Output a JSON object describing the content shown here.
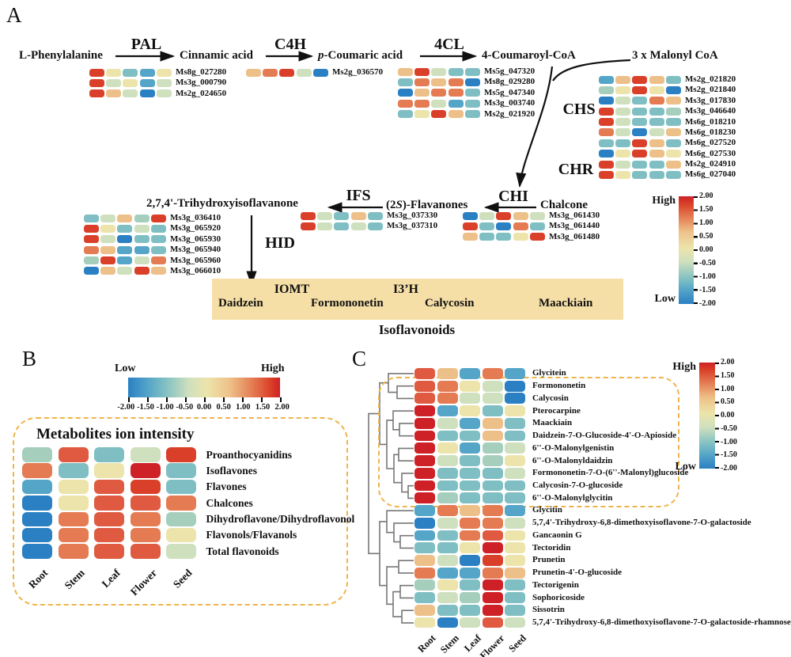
{
  "palette": {
    "D": "#ce2127",
    "R": "#da4029",
    "S": "#df5a40",
    "O": "#e47b52",
    "T": "#edc089",
    "C": "#ece4ab",
    "G": "#cfe0be",
    "M": "#a5cfbc",
    "E": "#7fbfc3",
    "L": "#54a5c8",
    "B": "#2a80c3",
    "accent_dashed": "#efb44b",
    "isoflavonoid_box_bg": "#f6dfa7",
    "dendrogram_line": "#777777",
    "arrow": "#111111"
  },
  "panelA": {
    "label": "A",
    "metabolites": {
      "phe": "L-Phenylalanine",
      "cinnamic": "Cinnamic acid",
      "coumaric_prefix": "p",
      "coumaric_rest": "-Coumaric acid",
      "coumaroyl": "4-Coumaroyl-CoA",
      "malonyl": "3 x Malonyl CoA",
      "chalcone": "Chalcone",
      "flavanones_pre": "(2",
      "flavanones_it": "S",
      "flavanones_rest": ")-Flavanones",
      "trihydroxy": "2,7,4'-Trihydroxyisoflavanone"
    },
    "enzymes": {
      "pal": "PAL",
      "c4h": "C4H",
      "fcl": "4CL",
      "chs": "CHS",
      "chr": "CHR",
      "chi": "CHI",
      "ifs": "IFS",
      "hid": "HID",
      "iomt": "IOMT",
      "i3h": "I3’H"
    },
    "isobox": {
      "daidzein": "Daidzein",
      "formononetin": "Formononetin",
      "calycosin": "Calycosin",
      "maackiain": "Maackiain",
      "caption": "Isoflavonoids"
    },
    "colorbar": {
      "high": "High",
      "low": "Low",
      "ticks": [
        "2.00",
        "1.50",
        "1.00",
        "0.50",
        "0.00",
        "-0.50",
        "-1.00",
        "-1.50",
        "-2.00"
      ]
    }
  },
  "panelB": {
    "label": "B",
    "colorbar": {
      "low": "Low",
      "high": "High",
      "ticks": [
        "-2.00",
        "-1.50",
        "-1.00",
        "-0.50",
        "0.00",
        "0.50",
        "1.00",
        "1.50",
        "2.00"
      ]
    },
    "title": "Metabolites ion intensity"
  },
  "panelC": {
    "label": "C",
    "colorbar": {
      "high": "High",
      "low": "Low",
      "ticks": [
        "2.00",
        "1.50",
        "1.00",
        "0.50",
        "0.00",
        "-0.50",
        "-1.00",
        "-1.50",
        "-2.00"
      ]
    },
    "dendrogram_merges": [
      [
        "L2",
        "L3",
        502
      ],
      [
        "L1",
        "M0",
        491
      ],
      [
        "L5",
        "L6",
        505
      ],
      [
        "L4",
        "M2",
        497
      ],
      [
        "L7",
        "L8",
        504
      ],
      [
        "L10",
        "L11",
        516
      ],
      [
        "L9",
        "M5",
        508
      ],
      [
        "M4",
        "M6",
        498
      ],
      [
        "M3",
        "M7",
        489
      ],
      [
        "M1",
        "M8",
        480
      ],
      [
        "L14",
        "L15",
        506
      ],
      [
        "L13",
        "M10",
        498
      ],
      [
        "L12",
        "M11",
        489
      ],
      [
        "L16",
        "L17",
        504
      ],
      [
        "L18",
        "L19",
        506
      ],
      [
        "L20",
        "L21",
        508
      ],
      [
        "M14",
        "M15",
        497
      ],
      [
        "M13",
        "M16",
        489
      ],
      [
        "M12",
        "M17",
        480
      ],
      [
        "M9",
        "M18",
        466
      ]
    ]
  },
  "chart_data": [
    {
      "type": "heatmap",
      "panel": "A",
      "description": "Gene expression (color scale -2 to 2) beside each pathway enzyme",
      "columns": [
        "Root",
        "Stem",
        "Leaf",
        "Flower",
        "Seed"
      ],
      "scale": [
        -2,
        2
      ],
      "groups": {
        "PAL": [
          {
            "gene": "Ms8g_027280",
            "cells": [
              "R",
              "C",
              "E",
              "L",
              "C"
            ]
          },
          {
            "gene": "Ms3g_000790",
            "cells": [
              "R",
              "G",
              "C",
              "L",
              "G"
            ]
          },
          {
            "gene": "Ms2g_024650",
            "cells": [
              "R",
              "T",
              "G",
              "B",
              "G"
            ]
          }
        ],
        "C4H": [
          {
            "gene": "Ms2g_036570",
            "cells": [
              "T",
              "O",
              "R",
              "G",
              "B"
            ]
          }
        ],
        "4CL": [
          {
            "gene": "Ms5g_047320",
            "cells": [
              "T",
              "R",
              "G",
              "E",
              "E"
            ]
          },
          {
            "gene": "Ms8g_029280",
            "cells": [
              "E",
              "O",
              "T",
              "O",
              "B"
            ]
          },
          {
            "gene": "Ms5g_047340",
            "cells": [
              "B",
              "T",
              "O",
              "O",
              "E"
            ]
          },
          {
            "gene": "Ms3g_003740",
            "cells": [
              "O",
              "O",
              "G",
              "L",
              "E"
            ]
          },
          {
            "gene": "Ms2g_021920",
            "cells": [
              "E",
              "C",
              "R",
              "T",
              "E"
            ]
          }
        ],
        "CHS": [
          {
            "gene": "Ms2g_021820",
            "cells": [
              "L",
              "T",
              "R",
              "T",
              "E"
            ]
          },
          {
            "gene": "Ms2g_021840",
            "cells": [
              "M",
              "C",
              "R",
              "C",
              "B"
            ]
          },
          {
            "gene": "Ms3g_017830",
            "cells": [
              "B",
              "G",
              "E",
              "O",
              "T"
            ]
          },
          {
            "gene": "Ms3g_046640",
            "cells": [
              "R",
              "G",
              "E",
              "E",
              "M"
            ]
          },
          {
            "gene": "Ms6g_018210",
            "cells": [
              "R",
              "G",
              "E",
              "E",
              "E"
            ]
          },
          {
            "gene": "Ms6g_018230",
            "cells": [
              "O",
              "G",
              "B",
              "G",
              "T"
            ]
          },
          {
            "gene": "Ms6g_027520",
            "cells": [
              "E",
              "E",
              "R",
              "T",
              "E"
            ]
          },
          {
            "gene": "Ms6g_027530",
            "cells": [
              "B",
              "C",
              "R",
              "T",
              "C"
            ]
          }
        ],
        "CHR": [
          {
            "gene": "Ms2g_024910",
            "cells": [
              "R",
              "G",
              "E",
              "E",
              "T"
            ]
          },
          {
            "gene": "Ms6g_027040",
            "cells": [
              "R",
              "C",
              "E",
              "E",
              "E"
            ]
          }
        ],
        "CHI": [
          {
            "gene": "Ms3g_061430",
            "cells": [
              "B",
              "G",
              "R",
              "T",
              "G"
            ]
          },
          {
            "gene": "Ms3g_061440",
            "cells": [
              "R",
              "E",
              "B",
              "O",
              "E"
            ]
          },
          {
            "gene": "Ms3g_061480",
            "cells": [
              "T",
              "E",
              "E",
              "C",
              "R"
            ]
          }
        ],
        "IFS": [
          {
            "gene": "Ms3g_037330",
            "cells": [
              "R",
              "G",
              "E",
              "T",
              "E"
            ]
          },
          {
            "gene": "Ms3g_037310",
            "cells": [
              "R",
              "G",
              "E",
              "G",
              "E"
            ]
          }
        ],
        "HID": [
          {
            "gene": "Ms3g_036410",
            "cells": [
              "E",
              "G",
              "T",
              "M",
              "R"
            ]
          },
          {
            "gene": "Ms3g_065920",
            "cells": [
              "R",
              "C",
              "E",
              "G",
              "E"
            ]
          },
          {
            "gene": "Ms3g_065930",
            "cells": [
              "R",
              "G",
              "B",
              "E",
              "E"
            ]
          },
          {
            "gene": "Ms3g_065940",
            "cells": [
              "O",
              "T",
              "L",
              "L",
              "E"
            ]
          },
          {
            "gene": "Ms3g_065960",
            "cells": [
              "M",
              "R",
              "L",
              "G",
              "O"
            ]
          },
          {
            "gene": "Ms3g_066010",
            "cells": [
              "B",
              "T",
              "G",
              "R",
              "T"
            ]
          }
        ]
      }
    },
    {
      "type": "heatmap",
      "panel": "B",
      "title": "Metabolites ion intensity",
      "columns": [
        "Root",
        "Stem",
        "Leaf",
        "Flower",
        "Seed"
      ],
      "scale": [
        -2,
        2
      ],
      "rows": [
        {
          "label": "Proanthocyanidins",
          "cells": [
            "M",
            "S",
            "E",
            "G",
            "R"
          ]
        },
        {
          "label": "Isoflavones",
          "cells": [
            "O",
            "E",
            "C",
            "D",
            "E"
          ]
        },
        {
          "label": "Flavones",
          "cells": [
            "L",
            "C",
            "S",
            "R",
            "E"
          ]
        },
        {
          "label": "Chalcones",
          "cells": [
            "B",
            "C",
            "S",
            "S",
            "O"
          ]
        },
        {
          "label": "Dihydroflavone/Dihydroflavonol",
          "cells": [
            "B",
            "O",
            "S",
            "O",
            "M"
          ]
        },
        {
          "label": "Flavonols/Flavanols",
          "cells": [
            "B",
            "O",
            "S",
            "O",
            "C"
          ]
        },
        {
          "label": "Total flavonoids",
          "cells": [
            "B",
            "O",
            "S",
            "S",
            "G"
          ]
        }
      ]
    },
    {
      "type": "heatmap",
      "panel": "C",
      "columns": [
        "Root",
        "Stem",
        "Leaf",
        "Flower",
        "Seed"
      ],
      "scale": [
        -2,
        2
      ],
      "highlighted_rows": [
        "Formononetin",
        "Calycosin",
        "Pterocarpine",
        "Maackiain",
        "Daidzein-7-O-Glucoside-4'-O-Apioside",
        "6''-O-Malonylgenistin",
        "6''-O-Malonyldaidzin",
        "Formononetin-7-O-(6''-Malonyl)glucoside",
        "Calycosin-7-O-glucoside",
        "6''-O-Malonylglycitin"
      ],
      "rows": [
        {
          "label": "Glycitein",
          "cells": [
            "S",
            "T",
            "L",
            "O",
            "L"
          ]
        },
        {
          "label": "Formononetin",
          "cells": [
            "S",
            "O",
            "C",
            "G",
            "B"
          ]
        },
        {
          "label": "Calycosin",
          "cells": [
            "S",
            "O",
            "G",
            "G",
            "B"
          ]
        },
        {
          "label": "Pterocarpine",
          "cells": [
            "D",
            "L",
            "C",
            "E",
            "C"
          ]
        },
        {
          "label": "Maackiain",
          "cells": [
            "D",
            "G",
            "L",
            "T",
            "E"
          ]
        },
        {
          "label": "Daidzein-7-O-Glucoside-4'-O-Apioside",
          "cells": [
            "D",
            "E",
            "E",
            "T",
            "E"
          ]
        },
        {
          "label": "6''-O-Malonylgenistin",
          "cells": [
            "D",
            "C",
            "L",
            "M",
            "G"
          ]
        },
        {
          "label": "6''-O-Malonyldaidzin",
          "cells": [
            "D",
            "G",
            "E",
            "M",
            "C"
          ]
        },
        {
          "label": "Formononetin-7-O-(6''-Malonyl)glucoside",
          "cells": [
            "D",
            "E",
            "E",
            "E",
            "G"
          ]
        },
        {
          "label": "Calycosin-7-O-glucoside",
          "cells": [
            "D",
            "E",
            "E",
            "E",
            "E"
          ]
        },
        {
          "label": "6''-O-Malonylglycitin",
          "cells": [
            "D",
            "M",
            "E",
            "E",
            "E"
          ]
        },
        {
          "label": "Glycitin",
          "cells": [
            "L",
            "O",
            "T",
            "O",
            "L"
          ]
        },
        {
          "label": "5,7,4'-Trihydroxy-6,8-dimethoxyisoflavone-7-O-galactoside",
          "cells": [
            "B",
            "G",
            "O",
            "O",
            "G"
          ]
        },
        {
          "label": "Gancaonin G",
          "cells": [
            "L",
            "E",
            "O",
            "S",
            "C"
          ]
        },
        {
          "label": "Tectoridin",
          "cells": [
            "E",
            "E",
            "C",
            "D",
            "C"
          ]
        },
        {
          "label": "Prunetin",
          "cells": [
            "T",
            "G",
            "B",
            "R",
            "C"
          ]
        },
        {
          "label": "Prunetin-4'-O-glucoside",
          "cells": [
            "O",
            "L",
            "L",
            "O",
            "T"
          ]
        },
        {
          "label": "Tectorigenin",
          "cells": [
            "M",
            "C",
            "E",
            "D",
            "E"
          ]
        },
        {
          "label": "Sophoricoside",
          "cells": [
            "E",
            "G",
            "M",
            "D",
            "E"
          ]
        },
        {
          "label": "Sissotrin",
          "cells": [
            "T",
            "E",
            "E",
            "D",
            "E"
          ]
        },
        {
          "label": "5,7,4'-Trihydroxy-6,8-dimethoxyisoflavone-7-O-galactoside-rhamnose",
          "cells": [
            "C",
            "B",
            "G",
            "S",
            "G"
          ]
        }
      ]
    }
  ]
}
